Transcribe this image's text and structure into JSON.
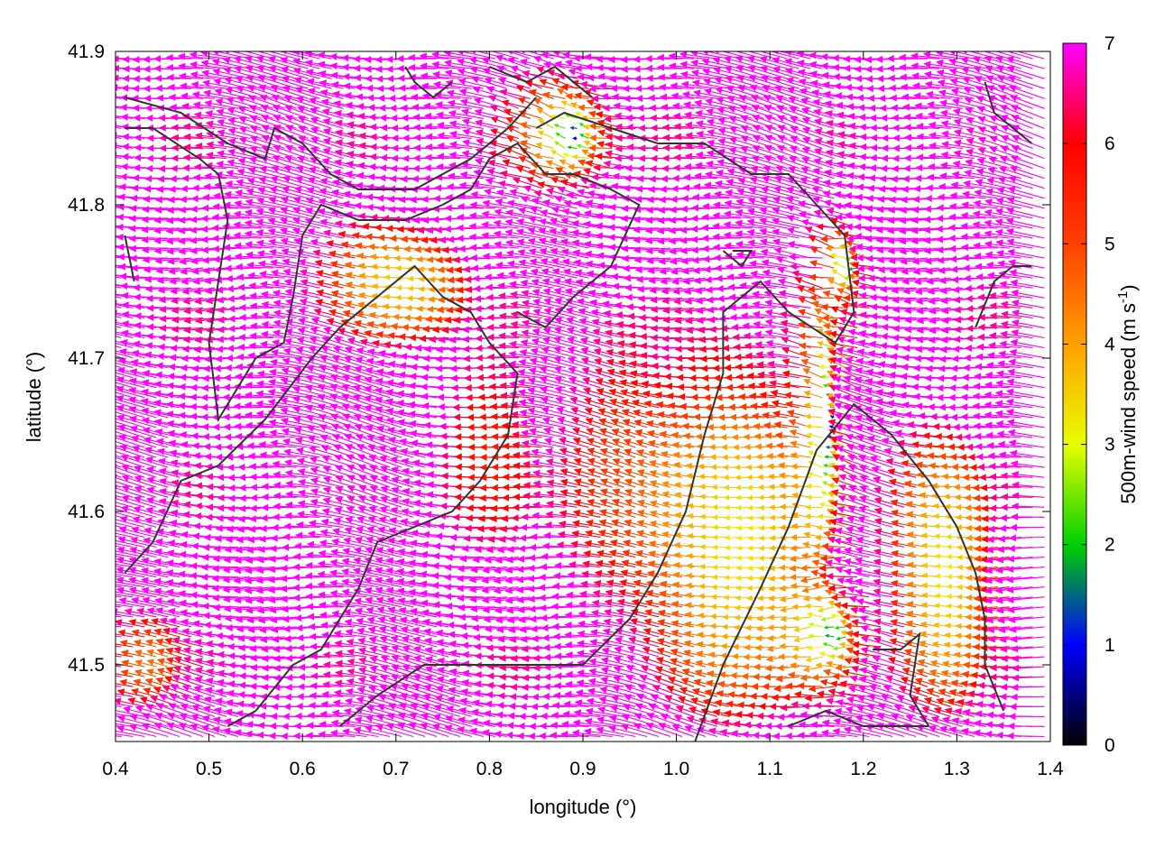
{
  "chart_data": {
    "type": "vector-field",
    "xlabel": "longitude (°)",
    "ylabel": "latitude (°)",
    "colorbar_label_main": "500m-wind speed (m s",
    "colorbar_label_sup": "-1",
    "colorbar_label_end": ")",
    "xlim": [
      0.4,
      1.4
    ],
    "ylim": [
      41.45,
      41.9
    ],
    "x_ticks": [
      "0.4",
      "0.5",
      "0.6",
      "0.7",
      "0.8",
      "0.9",
      "1.0",
      "1.1",
      "1.2",
      "1.3",
      "1.4"
    ],
    "x_tick_values": [
      0.4,
      0.5,
      0.6,
      0.7,
      0.8,
      0.9,
      1.0,
      1.1,
      1.2,
      1.3,
      1.4
    ],
    "y_ticks": [
      "41.5",
      "41.6",
      "41.7",
      "41.8",
      "41.9"
    ],
    "y_tick_values": [
      41.5,
      41.6,
      41.7,
      41.8,
      41.9
    ],
    "colorbar": {
      "range": [
        0,
        7
      ],
      "ticks": [
        "0",
        "1",
        "2",
        "3",
        "4",
        "5",
        "6",
        "7"
      ],
      "tick_values": [
        0,
        1,
        2,
        3,
        4,
        5,
        6,
        7
      ],
      "palette": [
        "#000000",
        "#0000ff",
        "#00d000",
        "#e8ff00",
        "#ffa000",
        "#ff4000",
        "#ff0000",
        "#ff00ff"
      ]
    },
    "grid": "dotted, light",
    "legend": "colorbar right",
    "arrow_spacing_deg": {
      "lon": 0.0125,
      "lat": 0.0065
    },
    "wind_field": {
      "background": {
        "u": -7.5,
        "v": 0.9
      },
      "calm_zones": [
        {
          "lon": 0.895,
          "lat": 41.845,
          "radius_lon": 0.075,
          "radius_lat": 0.055,
          "min_speed": 0.4
        },
        {
          "lon": 1.17,
          "lat": 41.66,
          "radius_lon": 0.035,
          "radius_lat": 0.13,
          "min_speed": 0.4
        },
        {
          "lon": 1.175,
          "lat": 41.52,
          "radius_lon": 0.06,
          "radius_lat": 0.05,
          "min_speed": 1.2
        },
        {
          "lon": 1.19,
          "lat": 41.76,
          "radius_lon": 0.04,
          "radius_lat": 0.04,
          "min_speed": 0.8
        }
      ],
      "moderate_zones": [
        {
          "lon": 0.82,
          "lat": 41.64,
          "radius_lon": 0.06,
          "radius_lat": 0.08,
          "speed": 5.6
        },
        {
          "lon": 0.96,
          "lat": 41.62,
          "radius_lon": 0.08,
          "radius_lat": 0.12,
          "speed": 5.0
        },
        {
          "lon": 1.08,
          "lat": 41.58,
          "radius_lon": 0.12,
          "radius_lat": 0.15,
          "speed": 3.2
        },
        {
          "lon": 1.3,
          "lat": 41.56,
          "radius_lon": 0.07,
          "radius_lat": 0.12,
          "speed": 3.2
        },
        {
          "lon": 0.72,
          "lat": 41.75,
          "radius_lon": 0.1,
          "radius_lat": 0.05,
          "speed": 3.5
        },
        {
          "lon": 0.45,
          "lat": 41.5,
          "radius_lon": 0.05,
          "radius_lat": 0.04,
          "speed": 4.5
        },
        {
          "lon": 0.4,
          "lat": 41.89,
          "radius_lon": 0.08,
          "radius_lat": 0.03,
          "speed": 6.5
        }
      ]
    },
    "coastline_and_topo_lines": [
      [
        [
          0.41,
          41.87
        ],
        [
          0.47,
          41.86
        ],
        [
          0.52,
          41.84
        ],
        [
          0.56,
          41.83
        ],
        [
          0.57,
          41.85
        ],
        [
          0.6,
          41.84
        ],
        [
          0.63,
          41.82
        ],
        [
          0.66,
          41.81
        ],
        [
          0.72,
          41.81
        ],
        [
          0.78,
          41.83
        ],
        [
          0.82,
          41.85
        ],
        [
          0.85,
          41.87
        ]
      ],
      [
        [
          0.41,
          41.85
        ],
        [
          0.44,
          41.85
        ],
        [
          0.49,
          41.83
        ],
        [
          0.51,
          41.82
        ],
        [
          0.52,
          41.79
        ],
        [
          0.51,
          41.75
        ],
        [
          0.5,
          41.71
        ],
        [
          0.51,
          41.66
        ],
        [
          0.55,
          41.7
        ],
        [
          0.58,
          41.71
        ],
        [
          0.59,
          41.74
        ],
        [
          0.6,
          41.78
        ],
        [
          0.62,
          41.8
        ],
        [
          0.66,
          41.79
        ],
        [
          0.71,
          41.79
        ],
        [
          0.75,
          41.8
        ],
        [
          0.78,
          41.81
        ],
        [
          0.8,
          41.83
        ],
        [
          0.83,
          41.84
        ],
        [
          0.86,
          41.82
        ],
        [
          0.89,
          41.82
        ],
        [
          0.93,
          41.81
        ],
        [
          0.96,
          41.8
        ],
        [
          0.93,
          41.76
        ],
        [
          0.89,
          41.74
        ],
        [
          0.86,
          41.72
        ],
        [
          0.83,
          41.73
        ]
      ],
      [
        [
          0.41,
          41.78
        ],
        [
          0.42,
          41.75
        ]
      ],
      [
        [
          0.41,
          41.56
        ],
        [
          0.44,
          41.58
        ],
        [
          0.47,
          41.62
        ],
        [
          0.51,
          41.63
        ],
        [
          0.56,
          41.66
        ],
        [
          0.61,
          41.7
        ],
        [
          0.64,
          41.72
        ],
        [
          0.68,
          41.74
        ],
        [
          0.72,
          41.76
        ],
        [
          0.75,
          41.74
        ],
        [
          0.78,
          41.73
        ],
        [
          0.8,
          41.71
        ],
        [
          0.83,
          41.69
        ],
        [
          0.82,
          41.65
        ],
        [
          0.79,
          41.62
        ],
        [
          0.76,
          41.6
        ],
        [
          0.72,
          41.59
        ],
        [
          0.68,
          41.58
        ],
        [
          0.66,
          41.55
        ],
        [
          0.62,
          41.51
        ],
        [
          0.59,
          41.5
        ],
        [
          0.55,
          41.47
        ],
        [
          0.52,
          41.46
        ]
      ],
      [
        [
          0.85,
          41.85
        ],
        [
          0.88,
          41.86
        ],
        [
          0.93,
          41.85
        ],
        [
          0.98,
          41.84
        ],
        [
          1.03,
          41.84
        ],
        [
          1.08,
          41.82
        ],
        [
          1.12,
          41.82
        ],
        [
          1.15,
          41.8
        ],
        [
          1.18,
          41.78
        ],
        [
          1.19,
          41.73
        ],
        [
          1.17,
          41.71
        ],
        [
          1.12,
          41.73
        ],
        [
          1.09,
          41.75
        ],
        [
          1.05,
          41.73
        ],
        [
          1.05,
          41.69
        ],
        [
          1.03,
          41.65
        ],
        [
          1.01,
          41.6
        ],
        [
          0.98,
          41.56
        ],
        [
          0.95,
          41.53
        ],
        [
          0.9,
          41.5
        ],
        [
          0.84,
          41.5
        ],
        [
          0.78,
          41.5
        ],
        [
          0.73,
          41.5
        ],
        [
          0.68,
          41.48
        ],
        [
          0.64,
          41.46
        ]
      ],
      [
        [
          1.02,
          41.45
        ],
        [
          1.05,
          41.5
        ],
        [
          1.09,
          41.55
        ],
        [
          1.12,
          41.59
        ],
        [
          1.15,
          41.64
        ],
        [
          1.19,
          41.67
        ],
        [
          1.23,
          41.65
        ],
        [
          1.27,
          41.62
        ],
        [
          1.3,
          41.59
        ],
        [
          1.32,
          41.56
        ],
        [
          1.33,
          41.53
        ],
        [
          1.33,
          41.5
        ],
        [
          1.35,
          41.47
        ]
      ],
      [
        [
          1.21,
          41.51
        ],
        [
          1.24,
          41.51
        ],
        [
          1.26,
          41.52
        ],
        [
          1.25,
          41.48
        ],
        [
          1.27,
          41.46
        ]
      ],
      [
        [
          1.12,
          41.46
        ],
        [
          1.16,
          41.47
        ],
        [
          1.2,
          41.46
        ],
        [
          1.24,
          41.46
        ],
        [
          1.27,
          41.46
        ]
      ],
      [
        [
          1.33,
          41.88
        ],
        [
          1.34,
          41.86
        ],
        [
          1.36,
          41.85
        ],
        [
          1.38,
          41.84
        ]
      ],
      [
        [
          1.32,
          41.72
        ],
        [
          1.34,
          41.75
        ],
        [
          1.36,
          41.76
        ],
        [
          1.38,
          41.76
        ]
      ],
      [
        [
          1.06,
          41.77
        ],
        [
          1.08,
          41.77
        ],
        [
          1.07,
          41.76
        ],
        [
          1.05,
          41.77
        ]
      ],
      [
        [
          0.8,
          41.89
        ],
        [
          0.84,
          41.88
        ],
        [
          0.87,
          41.89
        ],
        [
          0.91,
          41.87
        ]
      ],
      [
        [
          0.71,
          41.89
        ],
        [
          0.72,
          41.88
        ],
        [
          0.74,
          41.87
        ],
        [
          0.76,
          41.88
        ]
      ]
    ]
  }
}
